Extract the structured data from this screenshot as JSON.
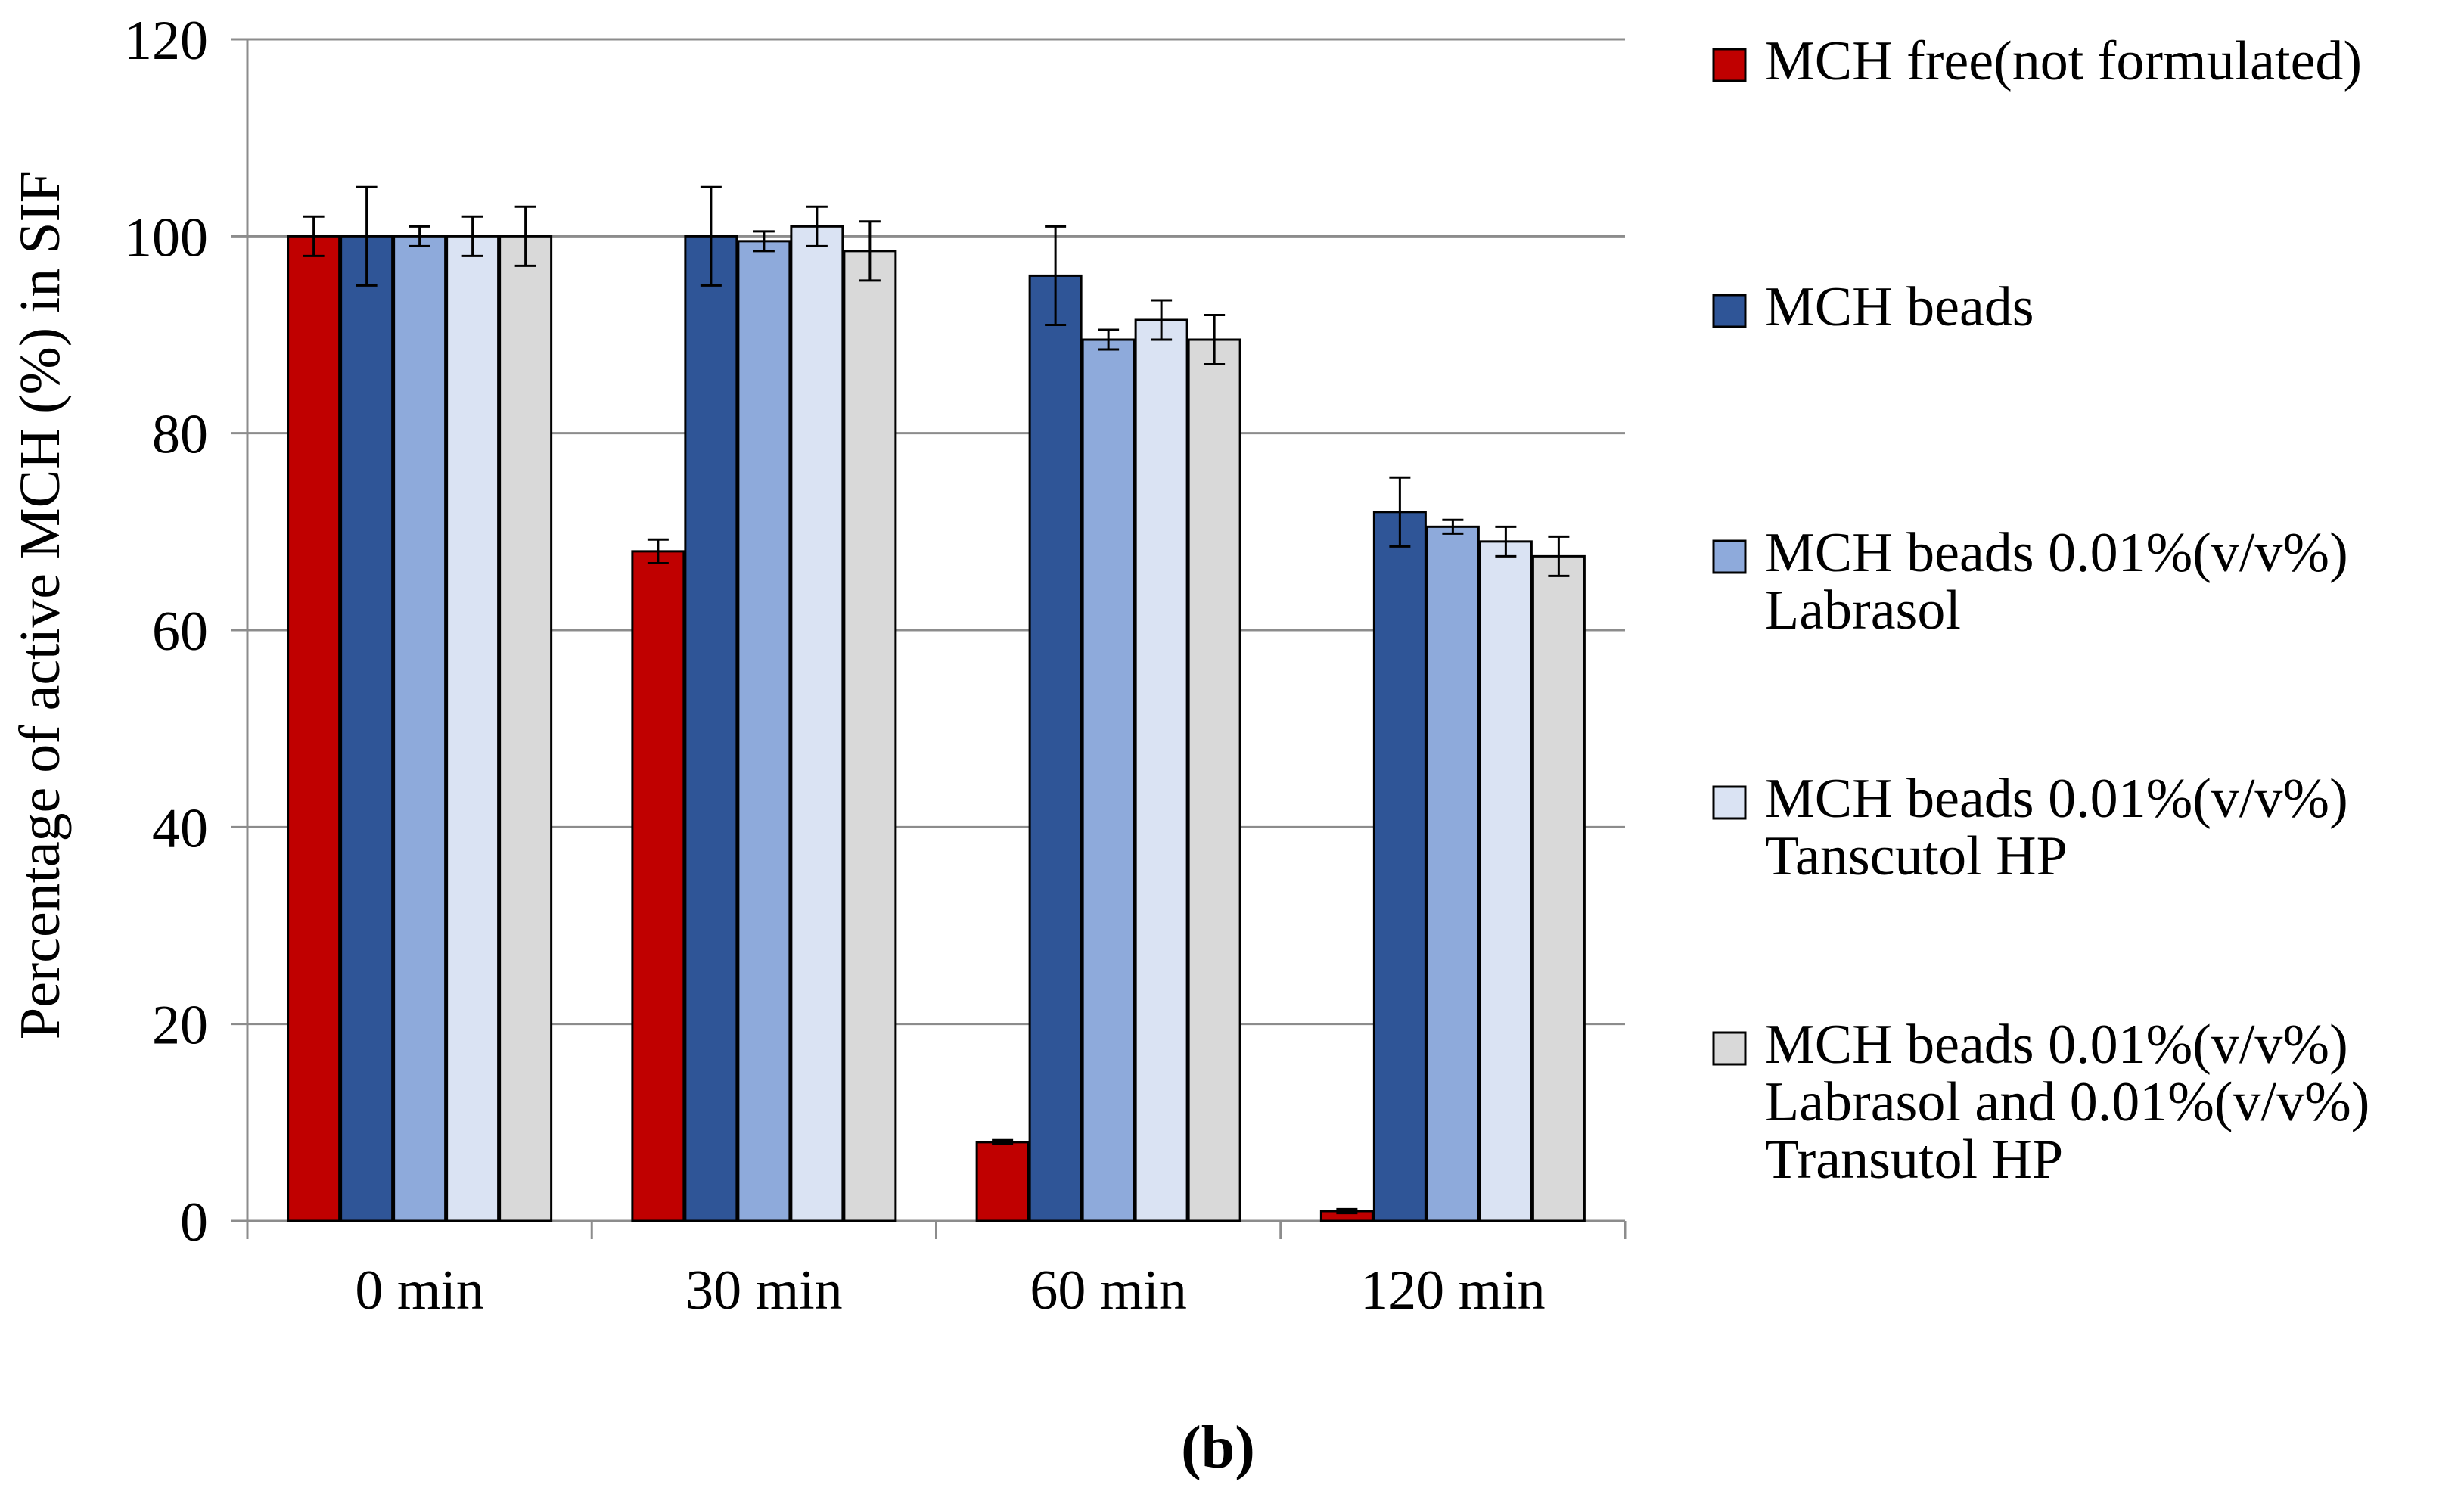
{
  "chart_data": {
    "type": "bar",
    "title": "",
    "ylabel": "Percentage of active MCH (%)  in SIF",
    "xlabel": "",
    "ylim": [
      0,
      120
    ],
    "yticks": [
      "0",
      "20",
      "40",
      "60",
      "80",
      "100",
      "120"
    ],
    "ytick_values": [
      0,
      20,
      40,
      60,
      80,
      100,
      120
    ],
    "categories": [
      "0 min",
      "30 min",
      "60 min",
      "120 min"
    ],
    "grid": "horizontal",
    "legend_position": "right",
    "panel_label": "(b)",
    "series": [
      {
        "name": "MCH free(not formulated)",
        "legend_lines": [
          "MCH free(not formulated)"
        ],
        "color": "#c00000",
        "values": [
          100,
          68,
          8,
          1
        ],
        "errors": [
          2,
          1.2,
          0.2,
          0.2
        ]
      },
      {
        "name": "MCH beads",
        "legend_lines": [
          "MCH beads"
        ],
        "color": "#2f5597",
        "values": [
          100,
          100,
          96,
          72
        ],
        "errors": [
          5,
          5,
          5,
          3.5
        ]
      },
      {
        "name": "MCH beads 0.01%(v/v%) Labrasol",
        "legend_lines": [
          "MCH beads 0.01%(v/v%)",
          "Labrasol"
        ],
        "color": "#8eaadb",
        "values": [
          100,
          99.5,
          89.5,
          70.5
        ],
        "errors": [
          1,
          1,
          1,
          0.7
        ]
      },
      {
        "name": "MCH beads 0.01%(v/v%) Tanscutol HP",
        "legend_lines": [
          "MCH beads 0.01%(v/v%)",
          "Tanscutol HP"
        ],
        "color": "#dae3f3",
        "values": [
          100,
          101,
          91.5,
          69
        ],
        "errors": [
          2,
          2,
          2,
          1.5
        ]
      },
      {
        "name": "MCH beads 0.01%(v/v%) Labrasol and 0.01%(v/v%) Transutol HP",
        "legend_lines": [
          "MCH beads 0.01%(v/v%)",
          "Labrasol and 0.01%(v/v%)",
          "Transutol HP"
        ],
        "color": "#d9d9d9",
        "values": [
          100,
          98.5,
          89.5,
          67.5
        ],
        "errors": [
          3,
          3,
          2.5,
          2
        ]
      }
    ]
  }
}
